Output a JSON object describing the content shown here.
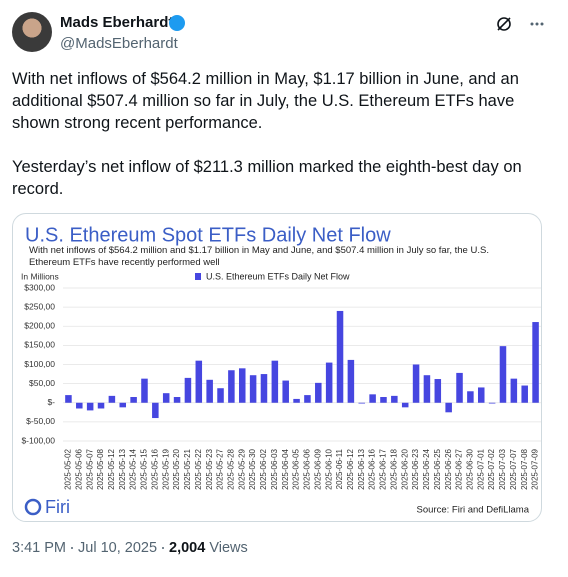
{
  "author": {
    "name": "Mads Eberhardt",
    "handle": "@MadsEberhardt"
  },
  "post": {
    "paragraphs": [
      "With net inflows of $564.2 million in May, $1.17 billion in June, and an additional $507.4 million so far in July, the U.S. Ethereum ETFs have shown strong recent performance.",
      "Yesterday’s net inflow of $211.3 million marked the eighth-best day on record."
    ]
  },
  "chart_data": {
    "type": "bar",
    "title": "U.S. Ethereum Spot ETFs Daily Net Flow",
    "subtitle": "With net inflows of $564.2 million and $1.17 billion in May and June, and $507.4 million in July so far, the U.S. Ethereum ETFs have recently performed well",
    "y_label": "In Millions",
    "logo": "Firi",
    "source": "Source: Firi and DefiLlama",
    "categories": [
      "2025-05-02",
      "2025-05-06",
      "2025-05-07",
      "2025-05-08",
      "2025-05-12",
      "2025-05-13",
      "2025-05-14",
      "2025-05-15",
      "2025-05-16",
      "2025-05-19",
      "2025-05-20",
      "2025-05-21",
      "2025-05-22",
      "2025-05-23",
      "2025-05-27",
      "2025-05-28",
      "2025-05-29",
      "2025-05-30",
      "2025-06-02",
      "2025-06-03",
      "2025-06-04",
      "2025-06-05",
      "2025-06-06",
      "2025-06-09",
      "2025-06-10",
      "2025-06-11",
      "2025-06-12",
      "2025-06-13",
      "2025-06-16",
      "2025-06-17",
      "2025-06-18",
      "2025-06-20",
      "2025-06-23",
      "2025-06-24",
      "2025-06-25",
      "2025-06-26",
      "2025-06-27",
      "2025-06-30",
      "2025-07-01",
      "2025-07-02",
      "2025-07-03",
      "2025-07-07",
      "2025-07-08",
      "2025-07-09"
    ],
    "series": [
      {
        "name": "U.S. Ethereum ETFs Daily Net Flow",
        "color": "#4646e0",
        "values": [
          20,
          -15,
          -20,
          -15,
          18,
          -12,
          15,
          63,
          -40,
          25,
          15,
          65,
          110,
          60,
          38,
          85,
          90,
          72,
          75,
          110,
          58,
          10,
          20,
          52,
          105,
          240,
          112,
          -2,
          22,
          15,
          18,
          -12,
          100,
          72,
          62,
          -25,
          78,
          30,
          40,
          -2,
          148,
          63,
          45,
          211
        ]
      }
    ],
    "ylim": [
      -100,
      300
    ],
    "yticks": [
      {
        "value": -100,
        "label": "$-100,00"
      },
      {
        "value": -50,
        "label": "$-50,00"
      },
      {
        "value": 0,
        "label": "$-"
      },
      {
        "value": 50,
        "label": "$50,00"
      },
      {
        "value": 100,
        "label": "$100,00"
      },
      {
        "value": 150,
        "label": "$150,00"
      },
      {
        "value": 200,
        "label": "$200,00"
      },
      {
        "value": 250,
        "label": "$250,00"
      },
      {
        "value": 300,
        "label": "$300,00"
      }
    ],
    "grid": true
  },
  "footer": {
    "time": "3:41 PM",
    "date": "Jul 10, 2025",
    "views": "2,004",
    "views_label": "Views"
  }
}
